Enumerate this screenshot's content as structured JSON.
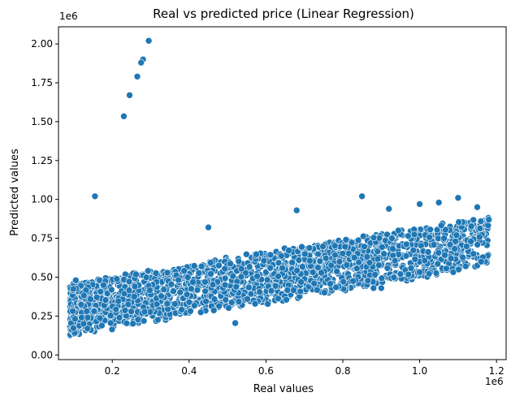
{
  "chart_data": {
    "type": "scatter",
    "title": "Real vs predicted price (Linear Regression)",
    "xlabel": "Real values",
    "ylabel": "Predicted values",
    "x_offset_label": "1e6",
    "y_offset_label": "1e6",
    "xlim": [
      0.06,
      1.225
    ],
    "ylim": [
      -0.03,
      2.11
    ],
    "x_ticks": [
      0.2,
      0.4,
      0.6,
      0.8,
      1.0,
      1.2
    ],
    "x_tick_labels": [
      "0.2",
      "0.4",
      "0.6",
      "0.8",
      "1.0",
      "1.2"
    ],
    "y_ticks": [
      0.0,
      0.25,
      0.5,
      0.75,
      1.0,
      1.25,
      1.5,
      1.75,
      2.0
    ],
    "y_tick_labels": [
      "0.00",
      "0.25",
      "0.50",
      "0.75",
      "1.00",
      "1.25",
      "1.50",
      "1.75",
      "2.00"
    ],
    "grid": false,
    "marker_color": "#1f77b4",
    "marker_edge_color": "#ffffff",
    "series": [
      {
        "name": "Real vs predicted",
        "x": [
          0.295,
          0.28,
          0.275,
          0.265,
          0.245,
          0.23,
          0.155,
          0.105,
          0.52,
          0.68,
          0.85,
          0.45,
          1.1,
          1.18,
          1.15,
          1.16,
          1.14,
          1.12,
          0.95,
          0.9,
          0.88,
          0.92,
          1.0,
          1.05
        ],
        "y": [
          2.02,
          1.9,
          1.88,
          1.79,
          1.67,
          1.535,
          1.02,
          0.48,
          0.205,
          0.93,
          1.02,
          0.82,
          1.01,
          0.87,
          0.95,
          0.6,
          0.65,
          0.57,
          0.52,
          0.43,
          0.43,
          0.94,
          0.97,
          0.98
        ]
      }
    ],
    "cloud_description_model": {
      "x_range": [
        0.09,
        1.18
      ],
      "baseline_intercept": 0.115,
      "baseline_slope": 0.56,
      "cloud_upper_offset": 0.32,
      "point_count": 2200
    }
  }
}
